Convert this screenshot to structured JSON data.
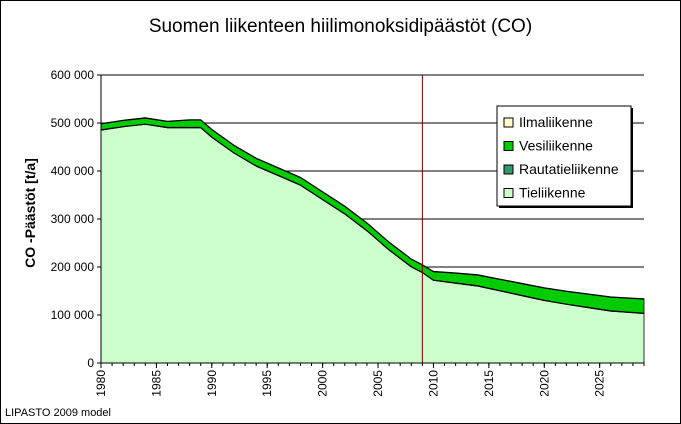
{
  "chart_data": {
    "type": "area",
    "stacked": true,
    "title": "Suomen liikenteen hiilimonoksidipäästöt (CO)",
    "ylabel": "CO -Päästöt [t/a]",
    "xlabel": "",
    "source_note": "LIPASTO 2009 model",
    "xlim": [
      1980,
      2029
    ],
    "ylim": [
      0,
      600000
    ],
    "y_ticks": [
      "0",
      "100 000",
      "200 000",
      "300 000",
      "400 000",
      "500 000",
      "600 000"
    ],
    "x_ticks": [
      "1980",
      "1985",
      "1990",
      "1995",
      "2000",
      "2005",
      "2010",
      "2015",
      "2020",
      "2025"
    ],
    "reference_line_x": 2009,
    "legend_position": "right",
    "grid": "horizontal",
    "x": [
      1980,
      1982,
      1984,
      1986,
      1988,
      1989,
      1990,
      1992,
      1994,
      1996,
      1998,
      2000,
      2002,
      2004,
      2006,
      2008,
      2009,
      2010,
      2012,
      2014,
      2016,
      2018,
      2020,
      2022,
      2024,
      2026,
      2029
    ],
    "series": [
      {
        "name": "Tieliikenne",
        "color": "#ccffcc",
        "values": [
          485000,
          492000,
          497000,
          490000,
          490000,
          490000,
          470000,
          437000,
          410000,
          390000,
          370000,
          340000,
          310000,
          275000,
          235000,
          200000,
          188000,
          172000,
          166000,
          160000,
          150000,
          140000,
          130000,
          122000,
          115000,
          108000,
          103000
        ]
      },
      {
        "name": "Rautatieliikenne",
        "color": "#339966",
        "values": [
          1000,
          1000,
          1000,
          1000,
          1000,
          1000,
          1000,
          1000,
          1000,
          1000,
          1000,
          1000,
          1000,
          1000,
          1000,
          1000,
          1000,
          1000,
          1000,
          1000,
          1000,
          1000,
          1000,
          1000,
          1000,
          1000,
          1000
        ]
      },
      {
        "name": "Vesiliikenne",
        "color": "#00cc00",
        "values": [
          12000,
          12000,
          12000,
          12000,
          15000,
          15000,
          15000,
          15000,
          15000,
          15000,
          15000,
          15000,
          15000,
          15000,
          15000,
          15000,
          15000,
          17000,
          20000,
          22000,
          23000,
          24000,
          25000,
          26000,
          27000,
          28000,
          29000
        ]
      },
      {
        "name": "Ilmaliikenne",
        "color": "#ffffcc",
        "values": [
          1000,
          1000,
          1000,
          1000,
          1000,
          1000,
          1000,
          1000,
          1000,
          1000,
          1000,
          1000,
          1000,
          1000,
          1000,
          1000,
          1000,
          1000,
          1000,
          1000,
          1000,
          1000,
          1000,
          1000,
          1000,
          1000,
          1000
        ]
      }
    ],
    "legend_order": [
      "Ilmaliikenne",
      "Vesiliikenne",
      "Rautatieliikenne",
      "Tieliikenne"
    ]
  }
}
